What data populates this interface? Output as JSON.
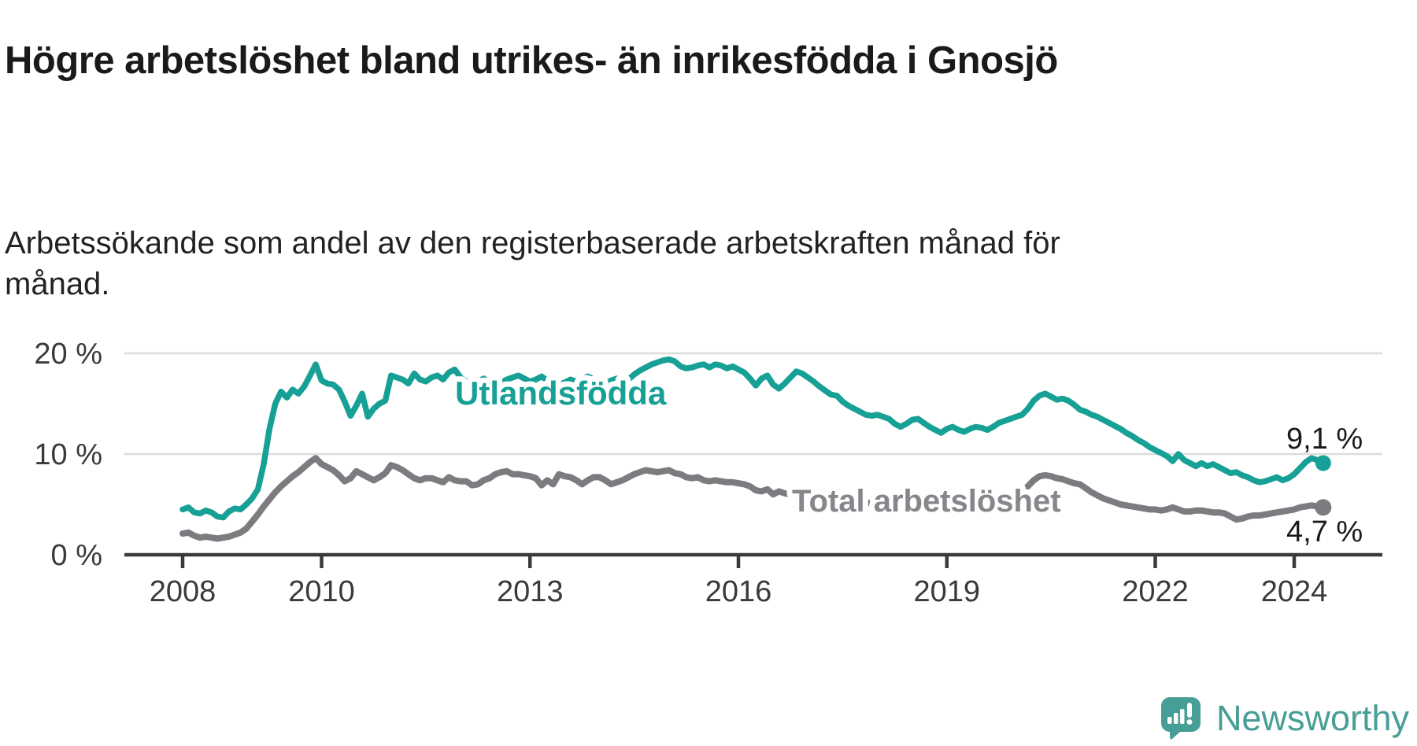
{
  "chart_data": {
    "type": "line",
    "title": "Högre arbetslöshet bland utrikes- än inrikesfödda i Gnosjö",
    "subtitle": "Arbetssökande som andel av den registerbaserade arbetskraften månad för månad.",
    "x_start_year": 2008,
    "x_step_months": 1,
    "x_ticks": {
      "years": [
        2008,
        2010,
        2013,
        2016,
        2019,
        2022,
        2024
      ],
      "labels": [
        "2008",
        "2010",
        "2013",
        "2016",
        "2019",
        "2022",
        "2024"
      ]
    },
    "y_ticks": [
      {
        "value": 0,
        "label": "0 %"
      },
      {
        "value": 10,
        "label": "10 %"
      },
      {
        "value": 20,
        "label": "20 %"
      }
    ],
    "ylim": [
      0,
      20.5
    ],
    "grid": true,
    "grid_color": "#dcdcdc",
    "axis_color": "#3a3a3a",
    "legend": "inline-labels",
    "series": [
      {
        "name": "Utlandsfödda",
        "color": "#17a096",
        "end_label": "9,1 %",
        "end_value": 9.1,
        "values": [
          4.5,
          4.7,
          4.2,
          4.1,
          4.4,
          4.2,
          3.8,
          3.7,
          4.3,
          4.6,
          4.5,
          5.0,
          5.6,
          6.5,
          9.0,
          12.5,
          15.0,
          16.2,
          15.6,
          16.4,
          16.0,
          16.7,
          17.8,
          18.9,
          17.3,
          17.0,
          16.9,
          16.4,
          15.2,
          13.8,
          14.8,
          16.0,
          13.7,
          14.5,
          15.0,
          15.3,
          17.8,
          17.6,
          17.4,
          17.0,
          18.0,
          17.4,
          17.2,
          17.6,
          17.8,
          17.4,
          18.1,
          18.4,
          17.6,
          17.2,
          17.0,
          17.2,
          17.5,
          17.1,
          16.9,
          17.1,
          17.4,
          17.6,
          17.8,
          17.5,
          17.2,
          17.4,
          17.7,
          17.3,
          17.0,
          16.9,
          17.1,
          17.4,
          17.2,
          17.5,
          17.7,
          17.4,
          17.2,
          17.0,
          17.3,
          17.5,
          17.2,
          17.4,
          17.9,
          18.3,
          18.6,
          18.9,
          19.1,
          19.3,
          19.4,
          19.2,
          18.7,
          18.5,
          18.6,
          18.8,
          18.9,
          18.6,
          18.9,
          18.8,
          18.5,
          18.7,
          18.4,
          18.1,
          17.5,
          16.8,
          17.5,
          17.8,
          16.9,
          16.5,
          17.0,
          17.6,
          18.2,
          18.0,
          17.6,
          17.2,
          16.7,
          16.3,
          15.9,
          15.8,
          15.2,
          14.8,
          14.5,
          14.2,
          13.9,
          13.8,
          13.9,
          13.7,
          13.5,
          13.0,
          12.7,
          13.0,
          13.4,
          13.5,
          13.1,
          12.7,
          12.4,
          12.1,
          12.5,
          12.7,
          12.4,
          12.2,
          12.5,
          12.7,
          12.6,
          12.4,
          12.7,
          13.1,
          13.3,
          13.5,
          13.7,
          13.9,
          14.5,
          15.3,
          15.8,
          16.0,
          15.7,
          15.4,
          15.5,
          15.3,
          14.9,
          14.4,
          14.2,
          13.9,
          13.7,
          13.4,
          13.1,
          12.8,
          12.5,
          12.1,
          11.8,
          11.4,
          11.1,
          10.7,
          10.4,
          10.1,
          9.8,
          9.3,
          10.0,
          9.4,
          9.1,
          8.8,
          9.1,
          8.8,
          9.0,
          8.7,
          8.4,
          8.1,
          8.2,
          7.9,
          7.7,
          7.4,
          7.2,
          7.3,
          7.5,
          7.7,
          7.4,
          7.6,
          8.0,
          8.6,
          9.2,
          9.6,
          9.4,
          9.1
        ]
      },
      {
        "name": "Total arbetslöshet",
        "color": "#7b7b80",
        "label_color": "#86868b",
        "end_label": "4,7 %",
        "end_value": 4.7,
        "values": [
          2.1,
          2.2,
          1.9,
          1.7,
          1.8,
          1.7,
          1.6,
          1.7,
          1.8,
          2.0,
          2.2,
          2.6,
          3.3,
          4.0,
          4.8,
          5.5,
          6.2,
          6.8,
          7.3,
          7.8,
          8.2,
          8.7,
          9.2,
          9.6,
          9.0,
          8.7,
          8.4,
          7.9,
          7.3,
          7.6,
          8.3,
          8.0,
          7.7,
          7.4,
          7.7,
          8.1,
          8.9,
          8.7,
          8.4,
          8.0,
          7.6,
          7.4,
          7.6,
          7.6,
          7.4,
          7.2,
          7.7,
          7.4,
          7.3,
          7.3,
          6.9,
          7.0,
          7.4,
          7.6,
          8.0,
          8.2,
          8.3,
          8.0,
          8.0,
          7.9,
          7.8,
          7.6,
          6.9,
          7.4,
          7.0,
          8.0,
          7.8,
          7.7,
          7.4,
          7.0,
          7.4,
          7.7,
          7.7,
          7.4,
          7.0,
          7.2,
          7.4,
          7.7,
          8.0,
          8.2,
          8.4,
          8.3,
          8.2,
          8.3,
          8.4,
          8.1,
          8.0,
          7.7,
          7.6,
          7.7,
          7.4,
          7.3,
          7.4,
          7.3,
          7.2,
          7.2,
          7.1,
          7.0,
          6.8,
          6.4,
          6.3,
          6.5,
          6.0,
          6.3,
          6.1,
          6.0,
          5.9,
          5.8,
          5.8,
          5.7,
          5.6,
          5.5,
          5.5,
          5.4,
          5.4,
          5.3,
          5.3,
          5.2,
          5.2,
          5.1,
          5.1,
          5.0,
          5.0,
          4.9,
          4.9,
          5.0,
          5.0,
          5.1,
          5.0,
          5.0,
          4.9,
          4.9,
          5.0,
          5.0,
          5.1,
          5.1,
          5.2,
          5.2,
          5.3,
          5.3,
          5.4,
          5.5,
          5.6,
          5.8,
          6.0,
          6.3,
          6.8,
          7.4,
          7.8,
          7.9,
          7.8,
          7.6,
          7.5,
          7.3,
          7.1,
          7.0,
          6.6,
          6.2,
          5.9,
          5.6,
          5.4,
          5.2,
          5.0,
          4.9,
          4.8,
          4.7,
          4.6,
          4.5,
          4.5,
          4.4,
          4.5,
          4.7,
          4.5,
          4.3,
          4.3,
          4.4,
          4.4,
          4.3,
          4.2,
          4.2,
          4.1,
          3.8,
          3.5,
          3.6,
          3.8,
          3.9,
          3.9,
          4.0,
          4.1,
          4.2,
          4.3,
          4.4,
          4.5,
          4.7,
          4.8,
          4.9,
          4.8,
          4.7
        ]
      }
    ]
  },
  "branding": {
    "name": "Newsworthy",
    "icon": "newsworthy-bubble-chart-icon",
    "color": "#479e96"
  }
}
